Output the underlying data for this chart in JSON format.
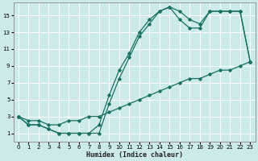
{
  "xlabel": "Humidex (Indice chaleur)",
  "bg_color": "#cceaea",
  "line_color": "#1a7060",
  "grid_color": "#ffffff",
  "xlim": [
    -0.5,
    23.5
  ],
  "ylim": [
    0,
    16.5
  ],
  "xticks": [
    0,
    1,
    2,
    3,
    4,
    5,
    6,
    7,
    8,
    9,
    10,
    11,
    12,
    13,
    14,
    15,
    16,
    17,
    18,
    19,
    20,
    21,
    22,
    23
  ],
  "yticks": [
    1,
    3,
    5,
    7,
    9,
    11,
    13,
    15
  ],
  "series1_x": [
    0,
    1,
    2,
    3,
    4,
    5,
    6,
    7,
    8,
    9,
    10,
    11,
    12,
    13,
    14,
    15,
    16,
    17,
    18,
    19,
    20,
    21,
    22,
    23
  ],
  "series1_y": [
    3,
    2,
    2,
    1.5,
    1,
    1,
    1,
    1,
    1,
    4.5,
    7.5,
    10,
    12.5,
    14,
    15.5,
    16,
    15.5,
    14.5,
    14,
    15.5,
    15.5,
    15.5,
    15.5,
    9.5
  ],
  "series2_x": [
    0,
    1,
    2,
    3,
    4,
    5,
    6,
    7,
    8,
    9,
    10,
    11,
    12,
    13,
    14,
    15,
    16,
    17,
    18,
    19,
    20,
    21,
    22,
    23
  ],
  "series2_y": [
    3,
    2,
    2,
    1.5,
    1,
    1,
    1,
    1,
    2,
    5.5,
    8.5,
    10.5,
    13,
    14.5,
    15.5,
    16,
    14.5,
    13.5,
    13.5,
    15.5,
    15.5,
    15.5,
    15.5,
    9.5
  ],
  "series3_x": [
    0,
    1,
    2,
    3,
    4,
    5,
    6,
    7,
    8,
    9,
    10,
    11,
    12,
    13,
    14,
    15,
    16,
    17,
    18,
    19,
    20,
    21,
    22,
    23
  ],
  "series3_y": [
    3,
    2.5,
    2.5,
    2,
    2,
    2.5,
    2.5,
    3,
    3,
    3.5,
    4,
    4.5,
    5,
    5.5,
    6,
    6.5,
    7,
    7.5,
    7.5,
    8,
    8.5,
    8.5,
    9,
    9.5
  ],
  "marker": "D",
  "markersize": 1.8,
  "linewidth": 0.9,
  "tick_fontsize": 5.0,
  "xlabel_fontsize": 6.0
}
